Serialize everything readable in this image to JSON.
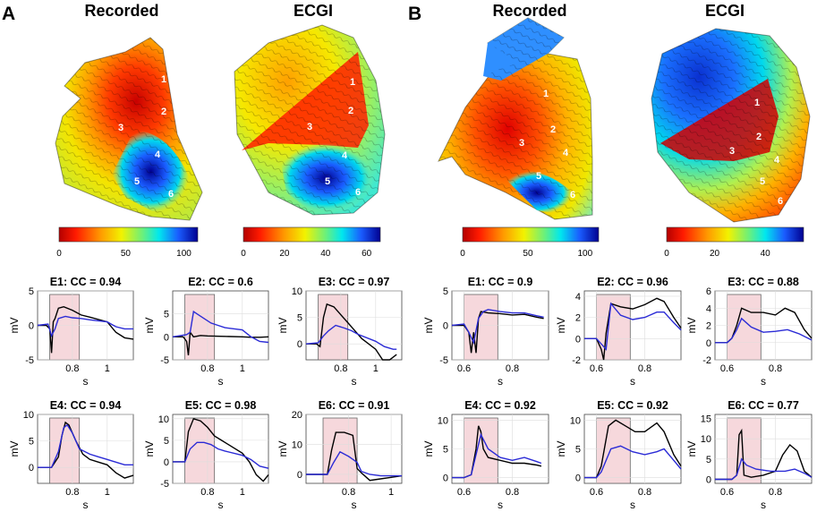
{
  "figure": {
    "panels": [
      {
        "letter": "A",
        "maps": [
          {
            "title": "Recorded",
            "colorbar_ticks": [
              "0",
              "50",
              "100"
            ],
            "electrode_labels": [
              "1",
              "2",
              "3",
              "4",
              "5",
              "6"
            ]
          },
          {
            "title": "ECGI",
            "colorbar_ticks": [
              "0",
              "20",
              "40",
              "60"
            ],
            "electrode_labels": [
              "1",
              "2",
              "3",
              "4",
              "5",
              "6"
            ]
          }
        ]
      },
      {
        "letter": "B",
        "maps": [
          {
            "title": "Recorded",
            "colorbar_ticks": [
              "0",
              "50",
              "100"
            ],
            "electrode_labels": [
              "1",
              "2",
              "3",
              "4",
              "5",
              "6"
            ]
          },
          {
            "title": "ECGI",
            "colorbar_ticks": [
              "0",
              "20",
              "40"
            ],
            "electrode_labels": [
              "1",
              "2",
              "3",
              "4",
              "5",
              "6"
            ]
          }
        ]
      }
    ],
    "series_colors": {
      "recorded": "#000000",
      "ecgi": "#2b2bd6",
      "window": "#f6d8dc"
    }
  },
  "chart_data": [
    {
      "type": "line",
      "panel": "A",
      "title": "E1: CC = 0.94",
      "xlabel": "s",
      "ylabel": "mV",
      "xlim": [
        0.6,
        1.15
      ],
      "ylim": [
        -5,
        5
      ],
      "yticks": [
        5,
        0,
        -5
      ],
      "xticks": [
        0.8,
        1
      ],
      "window": [
        0.67,
        0.84
      ],
      "series": [
        {
          "name": "Recorded",
          "x": [
            0.6,
            0.65,
            0.67,
            0.68,
            0.69,
            0.7,
            0.72,
            0.75,
            0.8,
            0.85,
            0.9,
            1.0,
            1.05,
            1.1,
            1.15
          ],
          "y": [
            0,
            0,
            -0.5,
            -4,
            0.5,
            1,
            2.5,
            2.7,
            2.2,
            1.5,
            1.2,
            0.5,
            -1,
            -1.8,
            -2
          ]
        },
        {
          "name": "ECGI",
          "x": [
            0.6,
            0.66,
            0.68,
            0.7,
            0.72,
            0.76,
            0.8,
            0.85,
            0.9,
            1.0,
            1.05,
            1.1,
            1.15
          ],
          "y": [
            0,
            0.2,
            -1.5,
            -0.5,
            1,
            1.3,
            1.1,
            1,
            0.8,
            0.5,
            -0.2,
            -0.5,
            -0.5
          ]
        }
      ]
    },
    {
      "type": "line",
      "panel": "A",
      "title": "E2: CC = 0.6",
      "xlabel": "s",
      "ylabel": "mV",
      "xlim": [
        0.6,
        1.15
      ],
      "ylim": [
        -5,
        10
      ],
      "yticks": [
        5,
        0,
        -5
      ],
      "xticks": [
        0.8,
        1
      ],
      "window": [
        0.67,
        0.84
      ],
      "series": [
        {
          "name": "Recorded",
          "x": [
            0.6,
            0.66,
            0.68,
            0.69,
            0.7,
            0.72,
            0.76,
            0.8,
            0.9,
            1.0,
            1.05,
            1.1,
            1.15
          ],
          "y": [
            0,
            0,
            -1,
            -4,
            1,
            0,
            0.3,
            0.2,
            0.1,
            0,
            -0.1,
            -0.1,
            0
          ]
        },
        {
          "name": "ECGI",
          "x": [
            0.6,
            0.68,
            0.7,
            0.72,
            0.74,
            0.78,
            0.82,
            0.86,
            0.9,
            1.0,
            1.05,
            1.1,
            1.15
          ],
          "y": [
            0,
            0.5,
            1,
            5.5,
            5,
            4,
            3,
            2.5,
            2,
            1.5,
            0,
            -1,
            -1.2
          ]
        }
      ]
    },
    {
      "type": "line",
      "panel": "A",
      "title": "E3: CC = 0.97",
      "xlabel": "s",
      "ylabel": "mV",
      "xlim": [
        0.6,
        1.15
      ],
      "ylim": [
        -3,
        10
      ],
      "yticks": [
        10,
        5,
        0
      ],
      "xticks": [
        0.8,
        1
      ],
      "window": [
        0.67,
        0.84
      ],
      "series": [
        {
          "name": "Recorded",
          "x": [
            0.6,
            0.66,
            0.68,
            0.7,
            0.72,
            0.76,
            0.8,
            0.84,
            0.88,
            0.92,
            1.0,
            1.04,
            1.08,
            1.12
          ],
          "y": [
            0,
            0,
            -0.5,
            5,
            7.5,
            7,
            5.5,
            4,
            2.5,
            1,
            -1,
            -3,
            -3,
            -2
          ]
        },
        {
          "name": "ECGI",
          "x": [
            0.6,
            0.67,
            0.7,
            0.73,
            0.77,
            0.82,
            0.86,
            0.9,
            1.0,
            1.05,
            1.1,
            1.12
          ],
          "y": [
            0,
            0.2,
            1.5,
            2.5,
            3.5,
            3,
            2.5,
            1.8,
            0.5,
            -0.5,
            -1,
            -1
          ]
        }
      ]
    },
    {
      "type": "line",
      "panel": "A",
      "title": "E4: CC = 0.94",
      "xlabel": "s",
      "ylabel": "mV",
      "xlim": [
        0.6,
        1.15
      ],
      "ylim": [
        -3,
        10
      ],
      "yticks": [
        10,
        5,
        0
      ],
      "xticks": [
        0.8,
        1
      ],
      "window": [
        0.67,
        0.84
      ],
      "series": [
        {
          "name": "Recorded",
          "x": [
            0.6,
            0.68,
            0.72,
            0.74,
            0.76,
            0.78,
            0.82,
            0.86,
            0.9,
            0.95,
            1.0,
            1.05,
            1.1,
            1.15
          ],
          "y": [
            0,
            0,
            2,
            6,
            8.5,
            8,
            5,
            2.5,
            1.5,
            1,
            0.5,
            -1,
            -2,
            -1.5
          ]
        },
        {
          "name": "ECGI",
          "x": [
            0.6,
            0.68,
            0.72,
            0.75,
            0.77,
            0.8,
            0.84,
            0.9,
            0.95,
            1.0,
            1.05,
            1.1,
            1.15
          ],
          "y": [
            0,
            0,
            3,
            7.5,
            8,
            6.5,
            3.5,
            2.5,
            2,
            1.5,
            1,
            0.5,
            0.5
          ]
        }
      ]
    },
    {
      "type": "line",
      "panel": "A",
      "title": "E5: CC = 0.98",
      "xlabel": "s",
      "ylabel": "mV",
      "xlim": [
        0.6,
        1.15
      ],
      "ylim": [
        -5,
        11
      ],
      "yticks": [
        10,
        5,
        0,
        -5
      ],
      "xticks": [
        0.8,
        1
      ],
      "window": [
        0.67,
        0.84
      ],
      "series": [
        {
          "name": "Recorded",
          "x": [
            0.6,
            0.67,
            0.69,
            0.72,
            0.76,
            0.8,
            0.84,
            0.88,
            0.92,
            1.0,
            1.04,
            1.08,
            1.12,
            1.15
          ],
          "y": [
            0,
            0,
            7,
            10,
            9.5,
            8,
            6,
            5,
            4,
            2,
            0,
            -3,
            -4.5,
            -3
          ]
        },
        {
          "name": "ECGI",
          "x": [
            0.6,
            0.67,
            0.7,
            0.74,
            0.78,
            0.82,
            0.86,
            0.9,
            1.0,
            1.05,
            1.1,
            1.15
          ],
          "y": [
            0,
            0,
            3,
            4.5,
            4.5,
            4,
            3,
            2.5,
            1.5,
            0.5,
            -1,
            -1.5
          ]
        }
      ]
    },
    {
      "type": "line",
      "panel": "A",
      "title": "E6: CC = 0.91",
      "xlabel": "s",
      "ylabel": "mV",
      "xlim": [
        0.6,
        1.05
      ],
      "ylim": [
        -3,
        20
      ],
      "yticks": [
        20,
        10,
        0
      ],
      "xticks": [
        0.8,
        1
      ],
      "window": [
        0.68,
        0.84
      ],
      "series": [
        {
          "name": "Recorded",
          "x": [
            0.6,
            0.7,
            0.72,
            0.74,
            0.78,
            0.82,
            0.84,
            0.86,
            0.9,
            0.95,
            1.0,
            1.05
          ],
          "y": [
            0,
            0,
            8,
            14,
            14,
            13,
            2,
            0.5,
            -2,
            -1.5,
            -1,
            -0.5
          ]
        },
        {
          "name": "ECGI",
          "x": [
            0.6,
            0.7,
            0.73,
            0.76,
            0.8,
            0.84,
            0.86,
            0.9,
            0.95,
            1.0,
            1.05
          ],
          "y": [
            0,
            0,
            4,
            7.5,
            6,
            4,
            1,
            0,
            -0.5,
            -0.5,
            -0.5
          ]
        }
      ]
    },
    {
      "type": "line",
      "panel": "B",
      "title": "E1: CC = 0.9",
      "xlabel": "s",
      "ylabel": "mV",
      "xlim": [
        0.55,
        0.95
      ],
      "ylim": [
        -5,
        5
      ],
      "yticks": [
        5,
        0,
        -5
      ],
      "xticks": [
        0.6,
        0.8
      ],
      "window": [
        0.6,
        0.74
      ],
      "series": [
        {
          "name": "Recorded",
          "x": [
            0.55,
            0.6,
            0.62,
            0.63,
            0.64,
            0.65,
            0.66,
            0.67,
            0.7,
            0.75,
            0.8,
            0.85,
            0.9,
            0.93
          ],
          "y": [
            0,
            0,
            -1,
            -4,
            -1,
            -4,
            1,
            2,
            1.8,
            1.7,
            1.5,
            1.6,
            1.2,
            1
          ]
        },
        {
          "name": "ECGI",
          "x": [
            0.55,
            0.6,
            0.62,
            0.64,
            0.66,
            0.68,
            0.7,
            0.75,
            0.8,
            0.85,
            0.9,
            0.93
          ],
          "y": [
            0,
            0.2,
            -1,
            -2.5,
            1,
            2,
            2.3,
            2,
            1.8,
            1.8,
            1.4,
            1.2
          ]
        }
      ]
    },
    {
      "type": "line",
      "panel": "B",
      "title": "E2: CC = 0.96",
      "xlabel": "s",
      "ylabel": "mV",
      "xlim": [
        0.55,
        0.95
      ],
      "ylim": [
        -2,
        4.5
      ],
      "yticks": [
        4,
        2,
        0,
        -2
      ],
      "xticks": [
        0.6,
        0.8
      ],
      "window": [
        0.6,
        0.74
      ],
      "series": [
        {
          "name": "Recorded",
          "x": [
            0.55,
            0.6,
            0.62,
            0.63,
            0.64,
            0.66,
            0.7,
            0.75,
            0.8,
            0.85,
            0.88,
            0.92,
            0.95
          ],
          "y": [
            0,
            0,
            -1,
            -2,
            0.5,
            3.3,
            3,
            2.8,
            3.2,
            3.8,
            3.5,
            2,
            1
          ]
        },
        {
          "name": "ECGI",
          "x": [
            0.55,
            0.6,
            0.62,
            0.64,
            0.66,
            0.7,
            0.75,
            0.8,
            0.85,
            0.88,
            0.92,
            0.95
          ],
          "y": [
            0,
            0,
            -0.5,
            -1,
            3.3,
            2.2,
            1.8,
            2,
            2.5,
            2.5,
            1.5,
            0.8
          ]
        }
      ]
    },
    {
      "type": "line",
      "panel": "B",
      "title": "E3: CC = 0.88",
      "xlabel": "s",
      "ylabel": "mV",
      "xlim": [
        0.55,
        0.95
      ],
      "ylim": [
        -2,
        6
      ],
      "yticks": [
        6,
        4,
        2,
        0,
        -2
      ],
      "xticks": [
        0.6,
        0.8
      ],
      "window": [
        0.6,
        0.74
      ],
      "series": [
        {
          "name": "Recorded",
          "x": [
            0.55,
            0.6,
            0.62,
            0.64,
            0.66,
            0.7,
            0.75,
            0.8,
            0.84,
            0.88,
            0.92,
            0.95
          ],
          "y": [
            0,
            0,
            0.5,
            2,
            4,
            3.5,
            3.5,
            3.2,
            4,
            3.5,
            1.5,
            0.5
          ]
        },
        {
          "name": "ECGI",
          "x": [
            0.55,
            0.6,
            0.62,
            0.64,
            0.66,
            0.7,
            0.75,
            0.8,
            0.85,
            0.9,
            0.95
          ],
          "y": [
            0,
            0,
            0.5,
            1.5,
            2.8,
            1.8,
            1.2,
            1.3,
            1.5,
            1,
            0.3
          ]
        }
      ]
    },
    {
      "type": "line",
      "panel": "B",
      "title": "E4: CC = 0.92",
      "xlabel": "s",
      "ylabel": "mV",
      "xlim": [
        0.55,
        0.95
      ],
      "ylim": [
        -1,
        11
      ],
      "yticks": [
        10,
        5,
        0
      ],
      "xticks": [
        0.6,
        0.8
      ],
      "window": [
        0.6,
        0.74
      ],
      "series": [
        {
          "name": "Recorded",
          "x": [
            0.55,
            0.6,
            0.63,
            0.65,
            0.66,
            0.67,
            0.68,
            0.7,
            0.75,
            0.8,
            0.85,
            0.9,
            0.92
          ],
          "y": [
            0,
            0,
            0.5,
            5,
            9,
            8,
            5,
            3.5,
            3,
            2.5,
            2.5,
            2.2,
            2
          ]
        },
        {
          "name": "ECGI",
          "x": [
            0.55,
            0.6,
            0.63,
            0.65,
            0.67,
            0.7,
            0.75,
            0.8,
            0.85,
            0.9,
            0.92
          ],
          "y": [
            0,
            0,
            0.5,
            4,
            7.5,
            5,
            3.5,
            3,
            3.5,
            2.8,
            2.5
          ]
        }
      ]
    },
    {
      "type": "line",
      "panel": "B",
      "title": "E5: CC = 0.92",
      "xlabel": "s",
      "ylabel": "mV",
      "xlim": [
        0.55,
        0.95
      ],
      "ylim": [
        -1,
        11
      ],
      "yticks": [
        10,
        5,
        0
      ],
      "xticks": [
        0.6,
        0.8
      ],
      "window": [
        0.6,
        0.74
      ],
      "series": [
        {
          "name": "Recorded",
          "x": [
            0.55,
            0.6,
            0.62,
            0.65,
            0.68,
            0.72,
            0.76,
            0.8,
            0.85,
            0.88,
            0.92,
            0.95
          ],
          "y": [
            0,
            0,
            2,
            9,
            10,
            9,
            8,
            8,
            9.5,
            8,
            4,
            2
          ]
        },
        {
          "name": "ECGI",
          "x": [
            0.55,
            0.6,
            0.62,
            0.66,
            0.7,
            0.75,
            0.8,
            0.85,
            0.88,
            0.92,
            0.95
          ],
          "y": [
            0,
            0,
            1,
            5,
            5.5,
            4.5,
            4,
            4.5,
            5,
            3,
            1.5
          ]
        }
      ]
    },
    {
      "type": "line",
      "panel": "B",
      "title": "E6: CC = 0.77",
      "xlabel": "s",
      "ylabel": "mV",
      "xlim": [
        0.55,
        0.95
      ],
      "ylim": [
        -1,
        16
      ],
      "yticks": [
        15,
        10,
        5,
        0
      ],
      "xticks": [
        0.6,
        0.8
      ],
      "window": [
        0.6,
        0.74
      ],
      "series": [
        {
          "name": "Recorded",
          "x": [
            0.55,
            0.62,
            0.64,
            0.65,
            0.66,
            0.67,
            0.7,
            0.75,
            0.8,
            0.83,
            0.86,
            0.89,
            0.92,
            0.95
          ],
          "y": [
            0,
            0,
            1,
            11,
            12,
            1,
            0.5,
            1,
            2,
            6,
            8.5,
            7,
            2,
            0.5
          ]
        },
        {
          "name": "ECGI",
          "x": [
            0.55,
            0.62,
            0.64,
            0.66,
            0.68,
            0.72,
            0.78,
            0.84,
            0.88,
            0.92,
            0.95
          ],
          "y": [
            0,
            0,
            1,
            5,
            3.5,
            2.5,
            2,
            2,
            2.5,
            1.5,
            0.5
          ]
        }
      ]
    }
  ]
}
